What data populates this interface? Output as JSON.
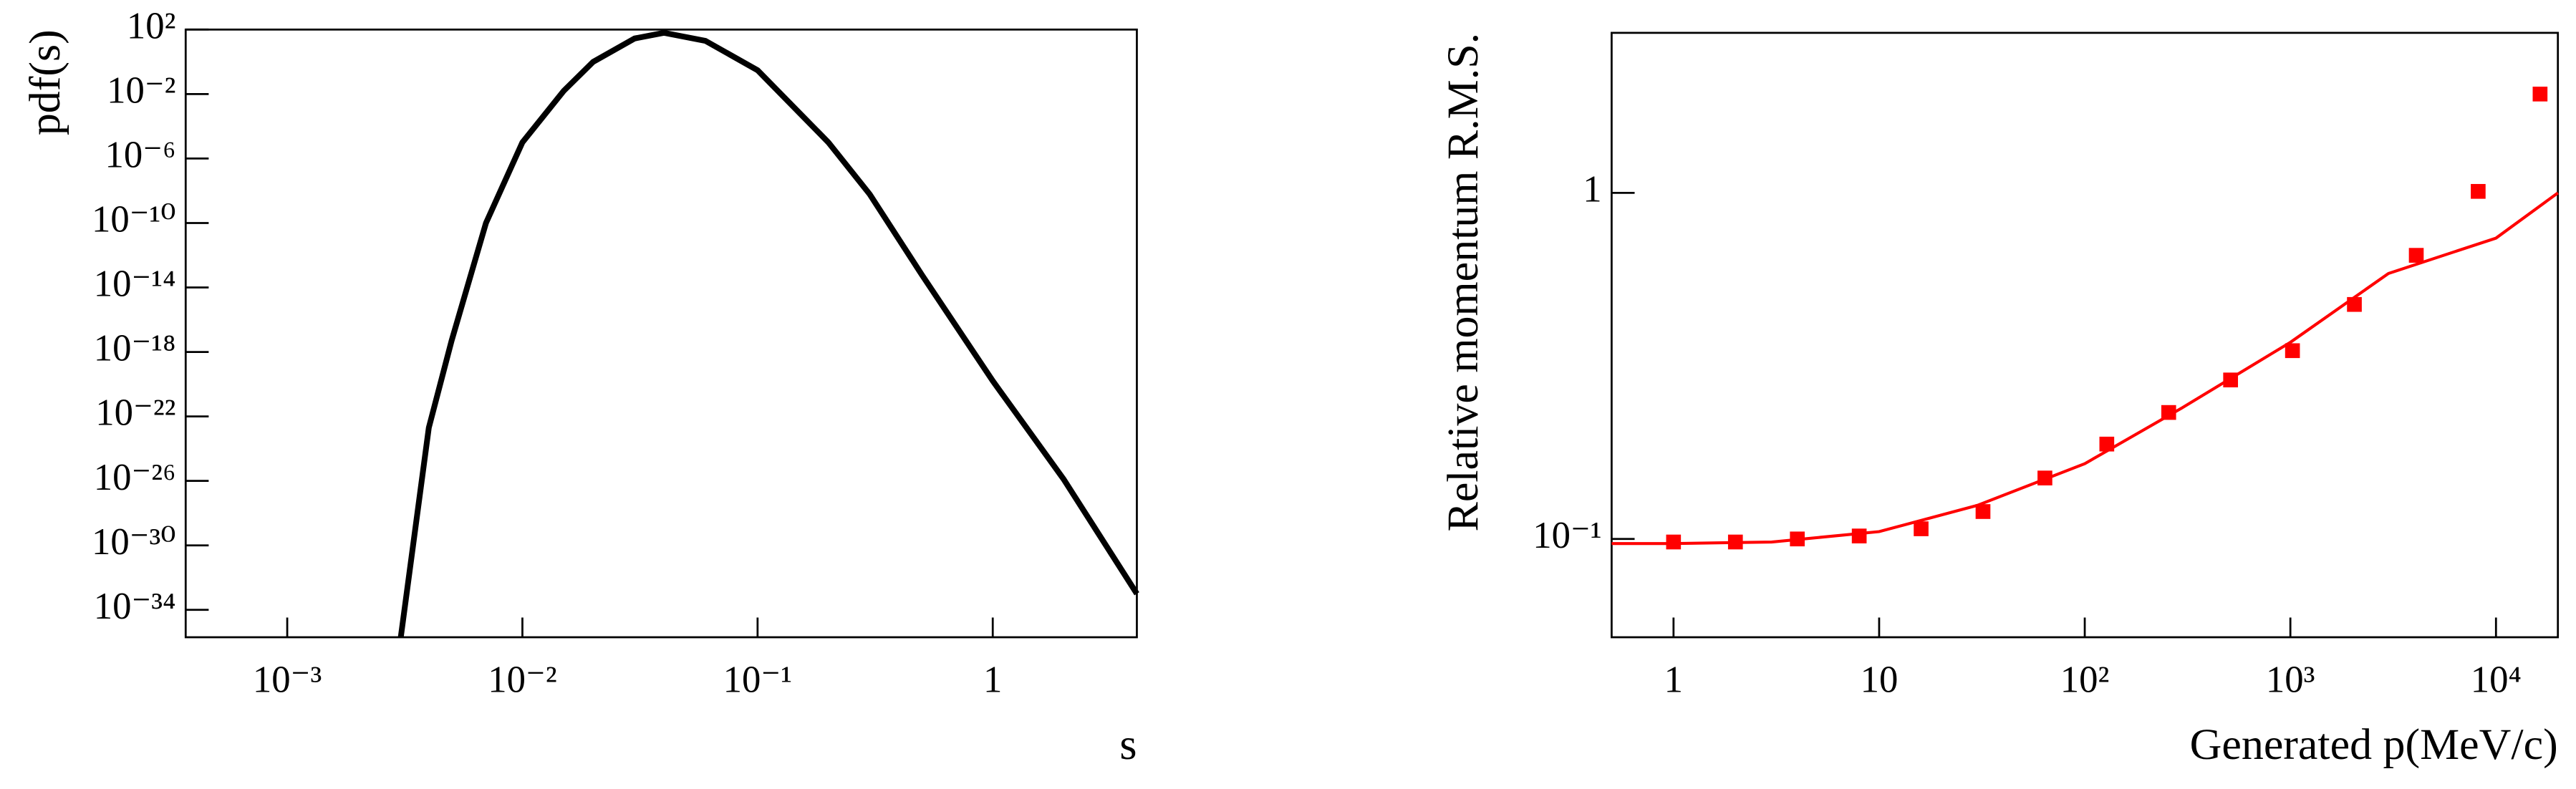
{
  "chart_data": [
    {
      "type": "line",
      "x_label": "s",
      "y_label": "pdf(s)",
      "xlog": true,
      "ylog": true,
      "xlim": [
        0.00037,
        4.1
      ],
      "ylim": [
        2e-36,
        100
      ],
      "xticks": [
        {
          "value": 0.001,
          "label": "10⁻³"
        },
        {
          "value": 0.01,
          "label": "10⁻²"
        },
        {
          "value": 0.1,
          "label": "10⁻¹"
        },
        1
      ],
      "yticks": [
        {
          "value": 100,
          "label": "10²"
        },
        {
          "value": 0.01,
          "label": "10⁻²"
        },
        {
          "value": 1e-06,
          "label": "10⁻⁶"
        },
        {
          "value": 1e-10,
          "label": "10⁻¹⁰"
        },
        {
          "value": 1e-14,
          "label": "10⁻¹⁴"
        },
        {
          "value": 1e-18,
          "label": "10⁻¹⁸"
        },
        {
          "value": 1e-22,
          "label": "10⁻²²"
        },
        {
          "value": 1e-26,
          "label": "10⁻²⁶"
        },
        {
          "value": 1e-30,
          "label": "10⁻³⁰"
        },
        {
          "value": 1e-34,
          "label": "10⁻³⁴"
        }
      ],
      "series": [
        {
          "color": "#000000",
          "x": [
            0.00304,
            0.004,
            0.005,
            0.007,
            0.01,
            0.015,
            0.02,
            0.03,
            0.04,
            0.06,
            0.1,
            0.2,
            0.3,
            0.5,
            1,
            2,
            4.1
          ],
          "values": [
            2e-36,
            2e-23,
            5e-18,
            1e-10,
            1e-05,
            0.016,
            1,
            28,
            63,
            20,
            0.3,
            1e-05,
            6e-09,
            6e-14,
            1.6e-20,
            1.3e-26,
            1e-33
          ]
        }
      ]
    },
    {
      "type": "scatter",
      "x_label": "Generated p(MeV/c)",
      "y_label": "Relative momentum R.M.S.",
      "xlog": true,
      "ylog": true,
      "xlim": [
        0.5,
        20000
      ],
      "ylim": [
        0.052,
        2.9
      ],
      "xticks": [
        1,
        10,
        {
          "value": 100,
          "label": "10²"
        },
        {
          "value": 1000,
          "label": "10³"
        },
        {
          "value": 10000,
          "label": "10⁴"
        }
      ],
      "yticks": [
        {
          "value": 0.1,
          "label": "10⁻¹"
        },
        1
      ],
      "series": [
        {
          "color": "#ff0000",
          "x": [
            1,
            2,
            4,
            8,
            16,
            32,
            64,
            128,
            256,
            512,
            1024,
            2048,
            4096,
            8192,
            16384
          ],
          "values": [
            0.098,
            0.098,
            0.1,
            0.102,
            0.107,
            0.12,
            0.15,
            0.188,
            0.232,
            0.288,
            0.35,
            0.476,
            0.66,
            1.01,
            1.93
          ]
        },
        {
          "type": "line",
          "color": "#ff0000",
          "x": [
            0.5,
            1,
            3,
            10,
            30,
            100,
            300,
            1000,
            3000,
            10000,
            20000
          ],
          "values": [
            0.097,
            0.097,
            0.098,
            0.105,
            0.125,
            0.165,
            0.24,
            0.37,
            0.585,
            0.74,
            1.0
          ]
        }
      ]
    }
  ]
}
